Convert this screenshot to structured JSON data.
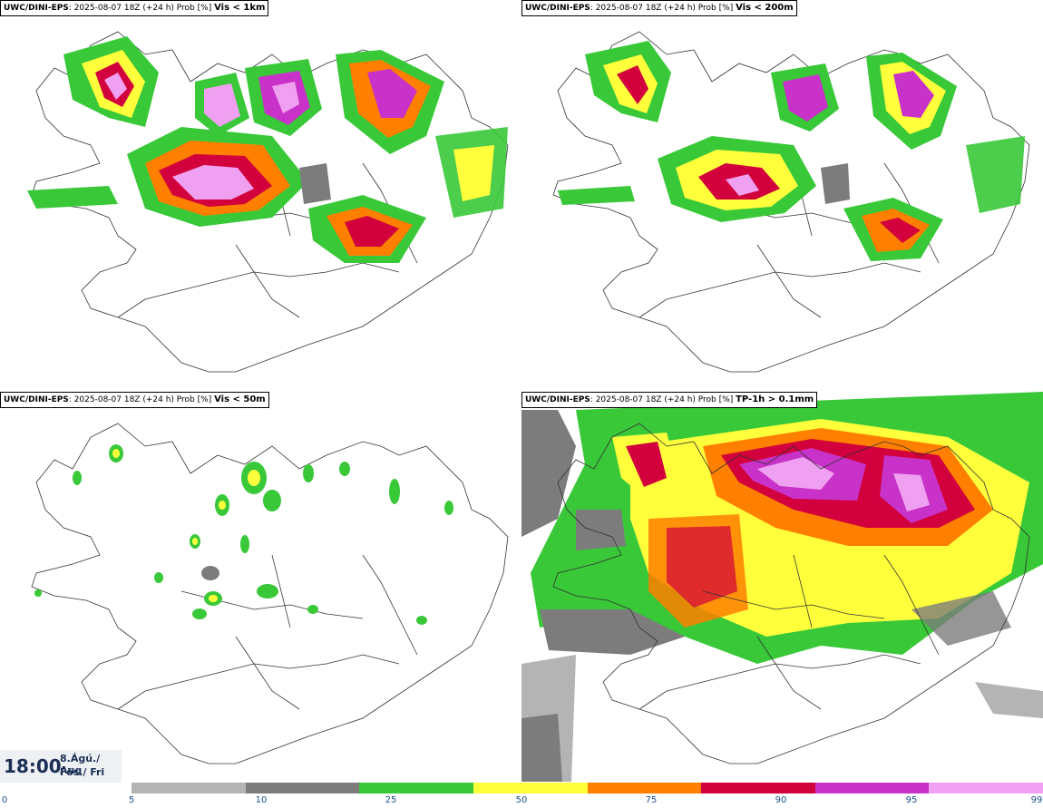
{
  "panels": [
    {
      "model": "UWC/DINI-EPS",
      "info": ": 2025-08-07 18Z (+24 h) Prob [%]",
      "param": "Vis < 1km"
    },
    {
      "model": "UWC/DINI-EPS",
      "info": ": 2025-08-07 18Z (+24 h) Prob [%]",
      "param": "Vis < 200m"
    },
    {
      "model": "UWC/DINI-EPS",
      "info": ": 2025-08-07 18Z (+24 h) Prob [%]",
      "param": "Vis < 50m"
    },
    {
      "model": "UWC/DINI-EPS",
      "info": ": 2025-08-07 18Z (+24 h) Prob [%]",
      "param": "TP-1h > 0.1mm"
    }
  ],
  "valid_time": {
    "time": "18:00",
    "date_line1": "8.Ágú./ Aug",
    "date_line2": "Fös./ Fri"
  },
  "colorbar": {
    "ticks": [
      "0",
      "5",
      "10",
      "25",
      "50",
      "75",
      "90",
      "95",
      "99"
    ],
    "colors": [
      "#b4b4b4",
      "#7c7c7c",
      "#38c838",
      "#ffff3c",
      "#ff7f00",
      "#d2003c",
      "#c832c8",
      "#f0a0f0"
    ]
  }
}
